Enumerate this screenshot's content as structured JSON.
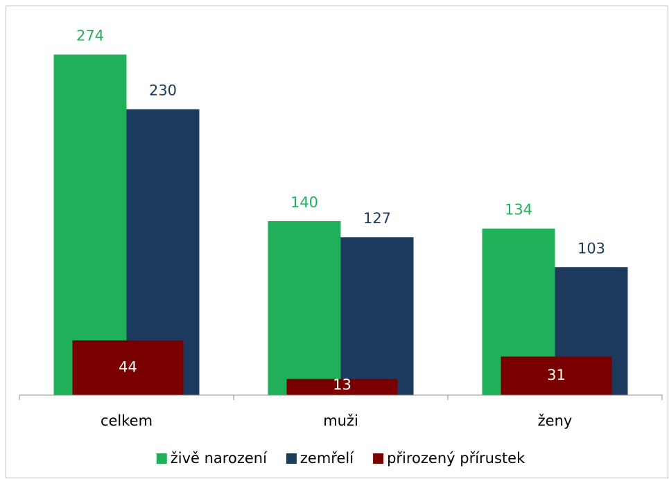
{
  "chart_data": {
    "type": "bar",
    "categories": [
      "celkem",
      "muži",
      "ženy"
    ],
    "series": [
      {
        "name": "živě narození",
        "color": "#21b05a",
        "values": [
          274,
          140,
          134
        ]
      },
      {
        "name": "zemřelí",
        "color": "#1b3a5e",
        "values": [
          230,
          127,
          103
        ]
      },
      {
        "name": "přirozený přírustek",
        "color": "#7a0000",
        "values": [
          44,
          13,
          31
        ]
      }
    ],
    "ylim": [
      0,
      300
    ],
    "legend": "bottom"
  }
}
